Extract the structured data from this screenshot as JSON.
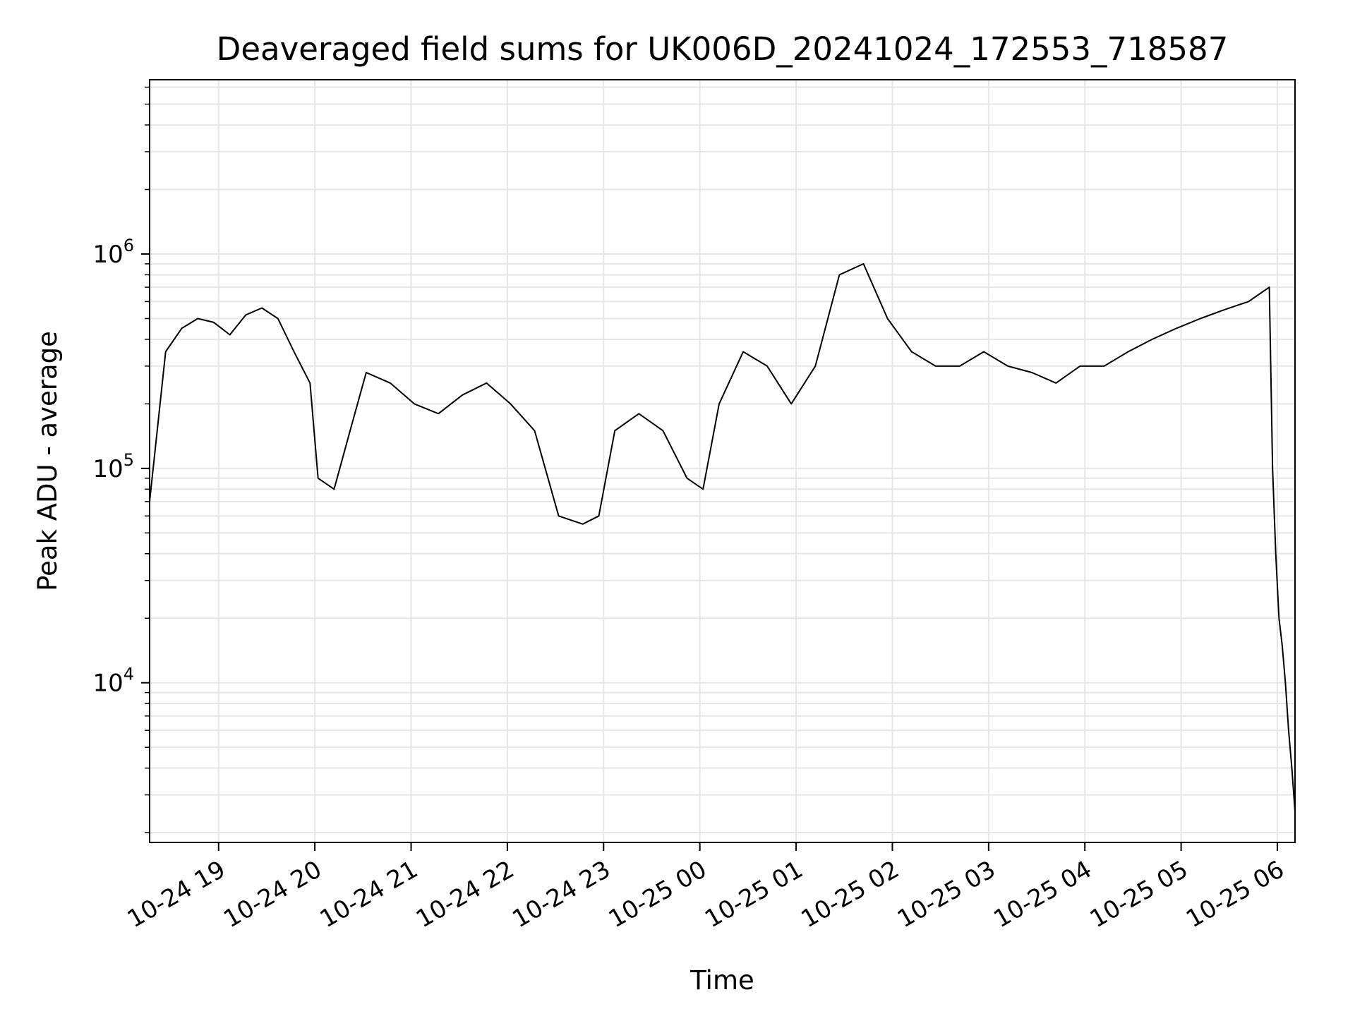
{
  "chart_data": {
    "type": "line",
    "title": "Deaveraged field sums for UK006D_20241024_172553_718587",
    "xlabel": "Time",
    "ylabel": "Peak ADU - average",
    "yscale": "log",
    "ylim": [
      1800,
      6500000
    ],
    "xlim": [
      "2024-10-24 18:17",
      "2024-10-25 06:11"
    ],
    "grid": true,
    "line_color": "#000000",
    "grid_color": "#e6e6e6",
    "x_ticks": [
      {
        "value": "2024-10-24 19:00",
        "label": "10-24 19"
      },
      {
        "value": "2024-10-24 20:00",
        "label": "10-24 20"
      },
      {
        "value": "2024-10-24 21:00",
        "label": "10-24 21"
      },
      {
        "value": "2024-10-24 22:00",
        "label": "10-24 22"
      },
      {
        "value": "2024-10-24 23:00",
        "label": "10-24 23"
      },
      {
        "value": "2024-10-25 00:00",
        "label": "10-25 00"
      },
      {
        "value": "2024-10-25 01:00",
        "label": "10-25 01"
      },
      {
        "value": "2024-10-25 02:00",
        "label": "10-25 02"
      },
      {
        "value": "2024-10-25 03:00",
        "label": "10-25 03"
      },
      {
        "value": "2024-10-25 04:00",
        "label": "10-25 04"
      },
      {
        "value": "2024-10-25 05:00",
        "label": "10-25 05"
      },
      {
        "value": "2024-10-25 06:00",
        "label": "10-25 06"
      }
    ],
    "y_ticks": [
      {
        "value": 10000,
        "base": "10",
        "exp": "4"
      },
      {
        "value": 100000,
        "base": "10",
        "exp": "5"
      },
      {
        "value": 1000000,
        "base": "10",
        "exp": "6"
      }
    ],
    "series": [
      {
        "points": [
          [
            "2024-10-24 18:17",
            70000
          ],
          [
            "2024-10-24 18:27",
            350000
          ],
          [
            "2024-10-24 18:37",
            450000
          ],
          [
            "2024-10-24 18:47",
            500000
          ],
          [
            "2024-10-24 18:57",
            480000
          ],
          [
            "2024-10-24 19:07",
            420000
          ],
          [
            "2024-10-24 19:17",
            520000
          ],
          [
            "2024-10-24 19:27",
            560000
          ],
          [
            "2024-10-24 19:37",
            500000
          ],
          [
            "2024-10-24 19:47",
            350000
          ],
          [
            "2024-10-24 19:57",
            250000
          ],
          [
            "2024-10-24 20:02",
            90000
          ],
          [
            "2024-10-24 20:12",
            80000
          ],
          [
            "2024-10-24 20:22",
            150000
          ],
          [
            "2024-10-24 20:32",
            280000
          ],
          [
            "2024-10-24 20:47",
            250000
          ],
          [
            "2024-10-24 21:02",
            200000
          ],
          [
            "2024-10-24 21:17",
            180000
          ],
          [
            "2024-10-24 21:32",
            220000
          ],
          [
            "2024-10-24 21:47",
            250000
          ],
          [
            "2024-10-24 22:02",
            200000
          ],
          [
            "2024-10-24 22:17",
            150000
          ],
          [
            "2024-10-24 22:32",
            60000
          ],
          [
            "2024-10-24 22:47",
            55000
          ],
          [
            "2024-10-24 22:57",
            60000
          ],
          [
            "2024-10-24 23:07",
            150000
          ],
          [
            "2024-10-24 23:22",
            180000
          ],
          [
            "2024-10-24 23:37",
            150000
          ],
          [
            "2024-10-24 23:52",
            90000
          ],
          [
            "2024-10-25 00:02",
            80000
          ],
          [
            "2024-10-25 00:12",
            200000
          ],
          [
            "2024-10-25 00:27",
            350000
          ],
          [
            "2024-10-25 00:42",
            300000
          ],
          [
            "2024-10-25 00:57",
            200000
          ],
          [
            "2024-10-25 01:12",
            300000
          ],
          [
            "2024-10-25 01:27",
            800000
          ],
          [
            "2024-10-25 01:42",
            900000
          ],
          [
            "2024-10-25 01:57",
            500000
          ],
          [
            "2024-10-25 02:12",
            350000
          ],
          [
            "2024-10-25 02:27",
            300000
          ],
          [
            "2024-10-25 02:42",
            300000
          ],
          [
            "2024-10-25 02:57",
            350000
          ],
          [
            "2024-10-25 03:12",
            300000
          ],
          [
            "2024-10-25 03:27",
            280000
          ],
          [
            "2024-10-25 03:42",
            250000
          ],
          [
            "2024-10-25 03:57",
            300000
          ],
          [
            "2024-10-25 04:12",
            300000
          ],
          [
            "2024-10-25 04:27",
            350000
          ],
          [
            "2024-10-25 04:42",
            400000
          ],
          [
            "2024-10-25 04:57",
            450000
          ],
          [
            "2024-10-25 05:12",
            500000
          ],
          [
            "2024-10-25 05:27",
            550000
          ],
          [
            "2024-10-25 05:42",
            600000
          ],
          [
            "2024-10-25 05:55",
            700000
          ],
          [
            "2024-10-25 05:57",
            100000
          ],
          [
            "2024-10-25 05:59",
            40000
          ],
          [
            "2024-10-25 06:01",
            20000
          ],
          [
            "2024-10-25 06:03",
            15000
          ],
          [
            "2024-10-25 06:05",
            10000
          ],
          [
            "2024-10-25 06:07",
            6000
          ],
          [
            "2024-10-25 06:09",
            4000
          ],
          [
            "2024-10-25 06:11",
            2500
          ]
        ]
      }
    ]
  }
}
